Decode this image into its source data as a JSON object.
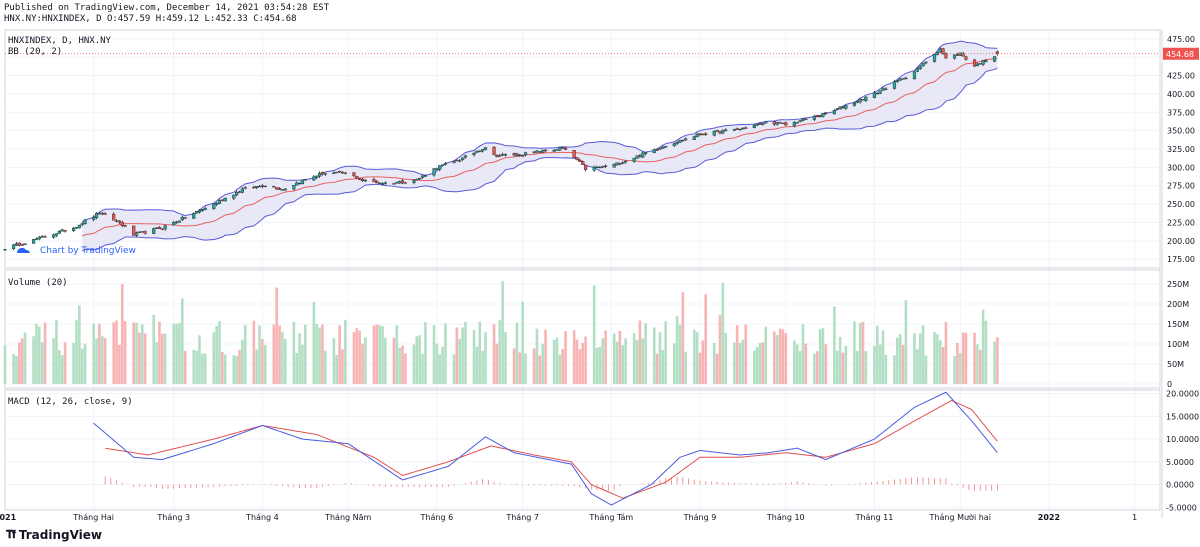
{
  "header": {
    "line1": "Published on TradingView.com, December 14, 2021 03:54:28 EST",
    "line2": "HNX.NY:HNXINDEX, D O:457.59 H:459.12 L:452.33 C:454.68"
  },
  "legend": {
    "symbol": "HNXINDEX, D, HNX.NY",
    "bb": "BB (20, 2)",
    "volume": "Volume (20)",
    "macd": "MACD (12, 26, close, 9)"
  },
  "watermark": "Chart by TradingView",
  "footer": {
    "brand": "TradingView"
  },
  "colors": {
    "up": "#26a69a",
    "down": "#ef5350",
    "vol_up": "#b2dfc4",
    "vol_down": "#f8b4b4",
    "bb_band": "#5a5ad8",
    "bb_fill": "#e4e4f4",
    "bb_basis": "#e86060",
    "macd": "#4a5ce0",
    "signal": "#e05050",
    "price_tag": "#ef5350"
  },
  "chart_data": [
    {
      "type": "candlestick",
      "title": "HNXINDEX, D, HNX.NY",
      "y_axis_ticks": [
        175,
        200,
        225,
        250,
        275,
        300,
        325,
        350,
        375,
        400,
        425,
        450,
        475
      ],
      "ylim": [
        163,
        487
      ],
      "last_price": 454.68,
      "last_price_label": "454.68",
      "ohlc_last": {
        "open": 457.59,
        "high": 459.12,
        "low": 452.33,
        "close": 454.68
      },
      "close_path": [
        [
          "2021-01-01",
          190
        ],
        [
          "2021-01-10",
          200
        ],
        [
          "2021-01-25",
          218
        ],
        [
          "2021-02-03",
          238
        ],
        [
          "2021-02-10",
          225
        ],
        [
          "2021-02-15",
          208
        ],
        [
          "2021-02-25",
          218
        ],
        [
          "2021-03-05",
          232
        ],
        [
          "2021-03-15",
          250
        ],
        [
          "2021-03-25",
          270
        ],
        [
          "2021-04-02",
          276
        ],
        [
          "2021-04-08",
          270
        ],
        [
          "2021-04-15",
          282
        ],
        [
          "2021-04-22",
          292
        ],
        [
          "2021-05-01",
          292
        ],
        [
          "2021-05-06",
          282
        ],
        [
          "2021-05-15",
          278
        ],
        [
          "2021-05-25",
          283
        ],
        [
          "2021-06-01",
          300
        ],
        [
          "2021-06-10",
          312
        ],
        [
          "2021-06-18",
          328
        ],
        [
          "2021-06-21",
          316
        ],
        [
          "2021-07-01",
          318
        ],
        [
          "2021-07-15",
          326
        ],
        [
          "2021-07-20",
          310
        ],
        [
          "2021-07-23",
          298
        ],
        [
          "2021-08-01",
          302
        ],
        [
          "2021-08-10",
          315
        ],
        [
          "2021-08-20",
          330
        ],
        [
          "2021-09-01",
          345
        ],
        [
          "2021-09-15",
          352
        ],
        [
          "2021-09-25",
          362
        ],
        [
          "2021-10-01",
          358
        ],
        [
          "2021-10-15",
          373
        ],
        [
          "2021-11-01",
          400
        ],
        [
          "2021-11-15",
          430
        ],
        [
          "2021-11-24",
          462
        ],
        [
          "2021-11-26",
          448
        ],
        [
          "2021-12-01",
          455
        ],
        [
          "2021-12-06",
          438
        ],
        [
          "2021-12-14",
          454.68
        ]
      ],
      "bollinger": {
        "period": 20,
        "stddev": 2
      }
    },
    {
      "type": "bar",
      "title": "Volume (20)",
      "y_axis_ticks": [
        0,
        50000000,
        100000000,
        150000000,
        200000000,
        250000000
      ],
      "y_axis_labels": [
        "0",
        "50M",
        "100M",
        "150M",
        "200M",
        "250M"
      ],
      "ylim": [
        0,
        275000000
      ],
      "note": "daily volume, colored by candle direction"
    },
    {
      "type": "line",
      "title": "MACD (12, 26, close, 9)",
      "y_axis_ticks": [
        -5,
        0,
        5,
        10,
        15,
        20
      ],
      "y_axis_labels": [
        "-5.0000",
        "0.0000",
        "5.0000",
        "10.0000",
        "15.0000",
        "20.0000"
      ],
      "ylim": [
        -5.6,
        20.8
      ],
      "series": [
        {
          "values_path": [
            [
              "2021-02-01",
              13.5
            ],
            [
              "2021-02-15",
              6
            ],
            [
              "2021-02-25",
              5.5
            ],
            [
              "2021-03-15",
              9
            ],
            [
              "2021-04-01",
              13
            ],
            [
              "2021-04-15",
              10
            ],
            [
              "2021-05-01",
              9
            ],
            [
              "2021-05-20",
              1
            ],
            [
              "2021-06-05",
              4
            ],
            [
              "2021-06-18",
              10.5
            ],
            [
              "2021-06-28",
              7
            ],
            [
              "2021-07-10",
              5.5
            ],
            [
              "2021-07-18",
              4.5
            ],
            [
              "2021-07-25",
              -2
            ],
            [
              "2021-08-01",
              -4.5
            ],
            [
              "2021-08-15",
              0
            ],
            [
              "2021-08-25",
              6
            ],
            [
              "2021-09-01",
              7.5
            ],
            [
              "2021-09-15",
              6.5
            ],
            [
              "2021-09-25",
              7
            ],
            [
              "2021-10-05",
              8
            ],
            [
              "2021-10-15",
              5.5
            ],
            [
              "2021-11-01",
              10
            ],
            [
              "2021-11-15",
              17
            ],
            [
              "2021-11-26",
              20.3
            ],
            [
              "2021-12-05",
              14
            ],
            [
              "2021-12-14",
              7
            ]
          ]
        },
        {
          "values_path": [
            [
              "2021-02-05",
              8
            ],
            [
              "2021-02-20",
              6.5
            ],
            [
              "2021-03-15",
              10
            ],
            [
              "2021-04-01",
              13
            ],
            [
              "2021-04-20",
              11
            ],
            [
              "2021-05-10",
              6
            ],
            [
              "2021-05-20",
              2
            ],
            [
              "2021-06-05",
              5
            ],
            [
              "2021-06-20",
              8.5
            ],
            [
              "2021-07-05",
              6.5
            ],
            [
              "2021-07-18",
              5
            ],
            [
              "2021-07-25",
              0
            ],
            [
              "2021-08-05",
              -3
            ],
            [
              "2021-08-20",
              0.5
            ],
            [
              "2021-09-01",
              6
            ],
            [
              "2021-09-15",
              6
            ],
            [
              "2021-10-01",
              7
            ],
            [
              "2021-10-15",
              6
            ],
            [
              "2021-11-01",
              9
            ],
            [
              "2021-11-15",
              14
            ],
            [
              "2021-11-28",
              18.5
            ],
            [
              "2021-12-05",
              16.5
            ],
            [
              "2021-12-14",
              9.5
            ]
          ]
        }
      ]
    }
  ],
  "x_axis_labels": [
    "2021",
    "Tháng Hai",
    "Tháng 3",
    "Tháng 4",
    "Tháng Năm",
    "Tháng 6",
    "Tháng 7",
    "Tháng Tám",
    "Tháng 9",
    "Tháng 10",
    "Tháng 11",
    "Tháng Mười hai",
    "2022",
    "1"
  ],
  "x_axis_label_dates": [
    "2021-01-01",
    "2021-02-01",
    "2021-03-01",
    "2021-04-01",
    "2021-05-01",
    "2021-06-01",
    "2021-07-01",
    "2021-08-01",
    "2021-09-01",
    "2021-10-01",
    "2021-11-01",
    "2021-12-01",
    "2022-01-01",
    "2022-01-31"
  ]
}
